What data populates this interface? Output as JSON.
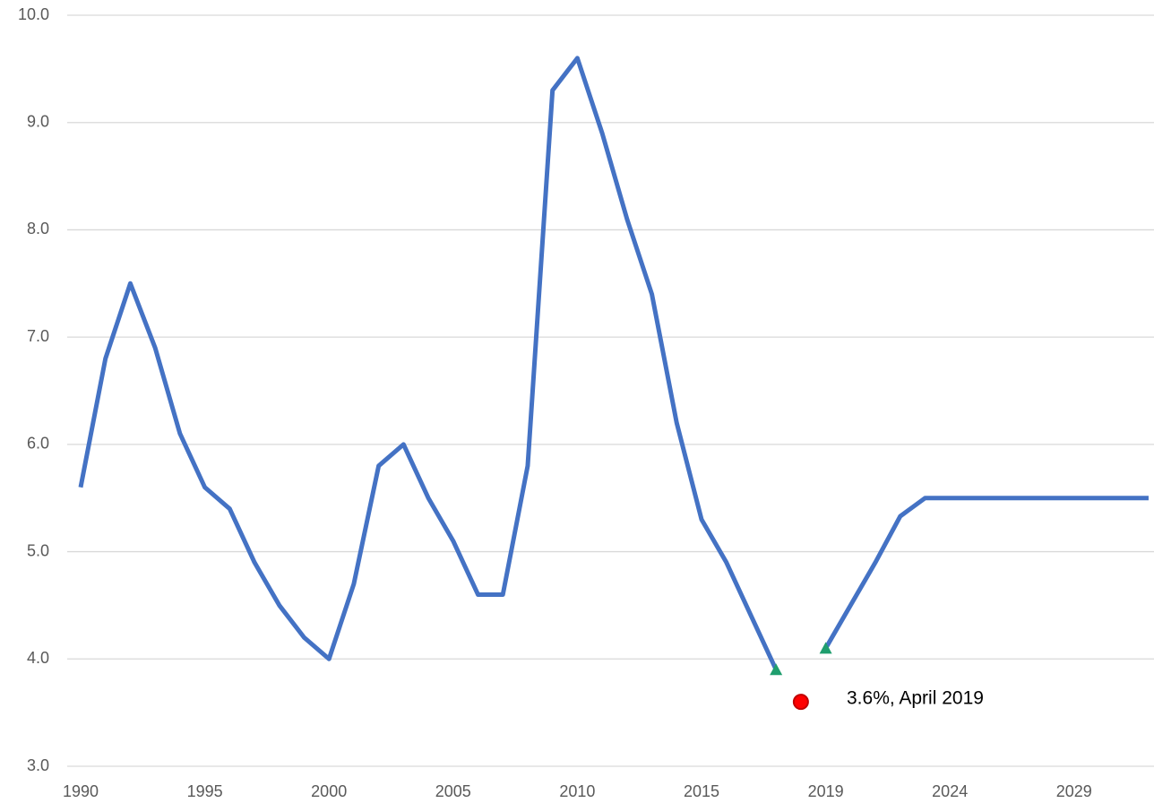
{
  "chart_data": {
    "type": "line",
    "categories": [
      "1990",
      null,
      null,
      null,
      null,
      "1995",
      null,
      null,
      null,
      null,
      "2000",
      null,
      null,
      null,
      null,
      "2005",
      null,
      null,
      null,
      null,
      "2010",
      null,
      null,
      null,
      null,
      "2015",
      null,
      null,
      null,
      null,
      "2019",
      null,
      null,
      null,
      null,
      "2024",
      null,
      null,
      null,
      null,
      "2029",
      null,
      null,
      null
    ],
    "series": [
      {
        "color": "#4472c4",
        "marker": "none",
        "values": [
          5.6,
          6.8,
          7.5,
          6.9,
          6.1,
          5.6,
          5.4,
          4.9,
          4.5,
          4.2,
          4.0,
          4.7,
          5.8,
          6.0,
          5.5,
          5.1,
          4.6,
          4.6,
          5.8,
          9.3,
          9.6,
          8.9,
          8.1,
          7.4,
          6.2,
          5.3,
          4.9,
          4.4,
          3.9,
          null,
          4.1,
          4.5,
          4.9,
          5.33,
          5.5,
          5.5,
          5.5,
          5.5,
          5.5,
          5.5,
          5.5,
          5.5,
          5.5,
          5.5
        ]
      },
      {
        "color": "#1f9e6e",
        "marker": "triangle",
        "values": [
          null,
          null,
          null,
          null,
          null,
          null,
          null,
          null,
          null,
          null,
          null,
          null,
          null,
          null,
          null,
          null,
          null,
          null,
          null,
          null,
          null,
          null,
          null,
          null,
          null,
          null,
          null,
          null,
          3.9,
          null,
          4.1,
          null,
          null,
          null,
          null,
          null,
          null,
          null,
          null,
          null,
          null,
          null,
          null,
          null
        ]
      },
      {
        "color": "#ff0000",
        "marker": "circle",
        "values": [
          null,
          null,
          null,
          null,
          null,
          null,
          null,
          null,
          null,
          null,
          null,
          null,
          null,
          null,
          null,
          null,
          null,
          null,
          null,
          null,
          null,
          null,
          null,
          null,
          null,
          null,
          null,
          null,
          null,
          3.6,
          null,
          null,
          null,
          null,
          null,
          null,
          null,
          null,
          null,
          null,
          null,
          null,
          null,
          null
        ]
      }
    ],
    "annotations": [
      {
        "text": "3.6%, April 2019"
      }
    ],
    "ylim": [
      3,
      10
    ],
    "yticks": [
      {
        "value": 3,
        "label": "3.0"
      },
      {
        "value": 4,
        "label": "4.0"
      },
      {
        "value": 5,
        "label": "5.0"
      },
      {
        "value": 6,
        "label": "6.0"
      },
      {
        "value": 7,
        "label": "7.0"
      },
      {
        "value": 8,
        "label": "8.0"
      },
      {
        "value": 9,
        "label": "9.0"
      },
      {
        "value": 10,
        "label": "10.0"
      }
    ],
    "grid": true
  }
}
